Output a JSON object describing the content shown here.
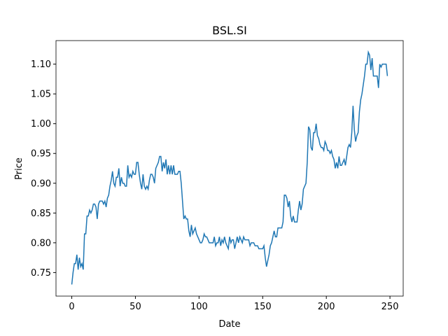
{
  "chart_data": {
    "type": "line",
    "title": "BSL.SI",
    "x_label": "Date",
    "y_label": "Price",
    "x": [
      0,
      1,
      2,
      3,
      4,
      5,
      6,
      7,
      8,
      9,
      10,
      11,
      12,
      13,
      14,
      15,
      16,
      17,
      18,
      19,
      20,
      21,
      22,
      23,
      24,
      25,
      26,
      27,
      28,
      29,
      30,
      31,
      32,
      33,
      34,
      35,
      36,
      37,
      38,
      39,
      40,
      41,
      42,
      43,
      44,
      45,
      46,
      47,
      48,
      49,
      50,
      51,
      52,
      53,
      54,
      55,
      56,
      57,
      58,
      59,
      60,
      61,
      62,
      63,
      64,
      65,
      66,
      67,
      68,
      69,
      70,
      71,
      72,
      73,
      74,
      75,
      76,
      77,
      78,
      79,
      80,
      81,
      82,
      83,
      84,
      85,
      86,
      87,
      88,
      89,
      90,
      91,
      92,
      93,
      94,
      95,
      96,
      97,
      98,
      99,
      100,
      101,
      102,
      103,
      104,
      105,
      106,
      107,
      108,
      109,
      110,
      111,
      112,
      113,
      114,
      115,
      116,
      117,
      118,
      119,
      120,
      121,
      122,
      123,
      124,
      125,
      126,
      127,
      128,
      129,
      130,
      131,
      132,
      133,
      134,
      135,
      136,
      137,
      138,
      139,
      140,
      141,
      142,
      143,
      144,
      145,
      146,
      147,
      148,
      149,
      150,
      151,
      152,
      153,
      154,
      155,
      156,
      157,
      158,
      159,
      160,
      161,
      162,
      163,
      164,
      165,
      166,
      167,
      168,
      169,
      170,
      171,
      172,
      173,
      174,
      175,
      176,
      177,
      178,
      179,
      180,
      181,
      182,
      183,
      184,
      185,
      186,
      187,
      188,
      189,
      190,
      191,
      192,
      193,
      194,
      195,
      196,
      197,
      198,
      199,
      200,
      201,
      202,
      203,
      204,
      205,
      206,
      207,
      208,
      209,
      210,
      211,
      212,
      213,
      214,
      215,
      216,
      217,
      218,
      219,
      220,
      221,
      222,
      223,
      224,
      225,
      226,
      227,
      228,
      229,
      230,
      231,
      232,
      233,
      234,
      235,
      236,
      237,
      238,
      239,
      240,
      241,
      242,
      243,
      244,
      245,
      246,
      247,
      248
    ],
    "series": [
      {
        "name": "Price",
        "color": "#1f77b4",
        "values": [
          0.73,
          0.75,
          0.765,
          0.765,
          0.78,
          0.755,
          0.775,
          0.76,
          0.765,
          0.755,
          0.815,
          0.815,
          0.845,
          0.845,
          0.855,
          0.85,
          0.855,
          0.865,
          0.865,
          0.86,
          0.84,
          0.865,
          0.87,
          0.87,
          0.87,
          0.865,
          0.87,
          0.86,
          0.875,
          0.88,
          0.895,
          0.905,
          0.92,
          0.9,
          0.895,
          0.91,
          0.91,
          0.925,
          0.895,
          0.91,
          0.9,
          0.9,
          0.895,
          0.895,
          0.93,
          0.91,
          0.915,
          0.91,
          0.92,
          0.915,
          0.915,
          0.935,
          0.935,
          0.915,
          0.9,
          0.89,
          0.915,
          0.895,
          0.89,
          0.895,
          0.89,
          0.905,
          0.915,
          0.915,
          0.91,
          0.9,
          0.925,
          0.93,
          0.935,
          0.945,
          0.945,
          0.92,
          0.935,
          0.925,
          0.94,
          0.915,
          0.93,
          0.915,
          0.93,
          0.915,
          0.93,
          0.915,
          0.915,
          0.915,
          0.92,
          0.92,
          0.9,
          0.87,
          0.84,
          0.845,
          0.84,
          0.84,
          0.82,
          0.81,
          0.83,
          0.815,
          0.82,
          0.825,
          0.815,
          0.81,
          0.805,
          0.8,
          0.8,
          0.805,
          0.815,
          0.81,
          0.81,
          0.805,
          0.8,
          0.8,
          0.8,
          0.8,
          0.81,
          0.795,
          0.8,
          0.8,
          0.81,
          0.795,
          0.805,
          0.8,
          0.81,
          0.8,
          0.795,
          0.79,
          0.81,
          0.8,
          0.805,
          0.805,
          0.79,
          0.8,
          0.81,
          0.8,
          0.81,
          0.805,
          0.8,
          0.81,
          0.805,
          0.805,
          0.805,
          0.805,
          0.795,
          0.8,
          0.8,
          0.8,
          0.795,
          0.795,
          0.795,
          0.79,
          0.79,
          0.79,
          0.79,
          0.795,
          0.775,
          0.76,
          0.77,
          0.78,
          0.795,
          0.8,
          0.81,
          0.82,
          0.81,
          0.81,
          0.825,
          0.825,
          0.825,
          0.825,
          0.835,
          0.88,
          0.88,
          0.875,
          0.86,
          0.87,
          0.845,
          0.835,
          0.845,
          0.835,
          0.835,
          0.835,
          0.855,
          0.87,
          0.855,
          0.865,
          0.89,
          0.895,
          0.9,
          0.935,
          0.995,
          0.99,
          0.96,
          0.955,
          0.985,
          0.985,
          1.0,
          0.98,
          0.975,
          0.965,
          0.96,
          0.96,
          0.955,
          0.97,
          0.965,
          0.955,
          0.955,
          0.95,
          0.955,
          0.945,
          0.94,
          0.925,
          0.935,
          0.925,
          0.945,
          0.93,
          0.93,
          0.935,
          0.94,
          0.93,
          0.945,
          0.96,
          0.965,
          0.96,
          0.985,
          1.03,
          0.99,
          0.97,
          0.98,
          0.985,
          1.02,
          1.04,
          1.05,
          1.065,
          1.08,
          1.1,
          1.1,
          1.12,
          1.115,
          1.09,
          1.11,
          1.08,
          1.08,
          1.08,
          1.08,
          1.06,
          1.1,
          1.095,
          1.1,
          1.1,
          1.1,
          1.1,
          1.08
        ]
      }
    ],
    "xlim": [
      -12.4,
      260.4
    ],
    "xticks": [
      0,
      50,
      100,
      150,
      200,
      250
    ],
    "ylim": [
      0.7105,
      1.1395
    ],
    "yticks": [
      0.75,
      {
        "value": 0.8,
        "label": "0.80"
      },
      0.85,
      {
        "value": 0.9,
        "label": "0.90"
      },
      0.95,
      {
        "value": 1.0,
        "label": "1.00"
      },
      1.05,
      {
        "value": 1.1,
        "label": "1.10"
      }
    ]
  }
}
